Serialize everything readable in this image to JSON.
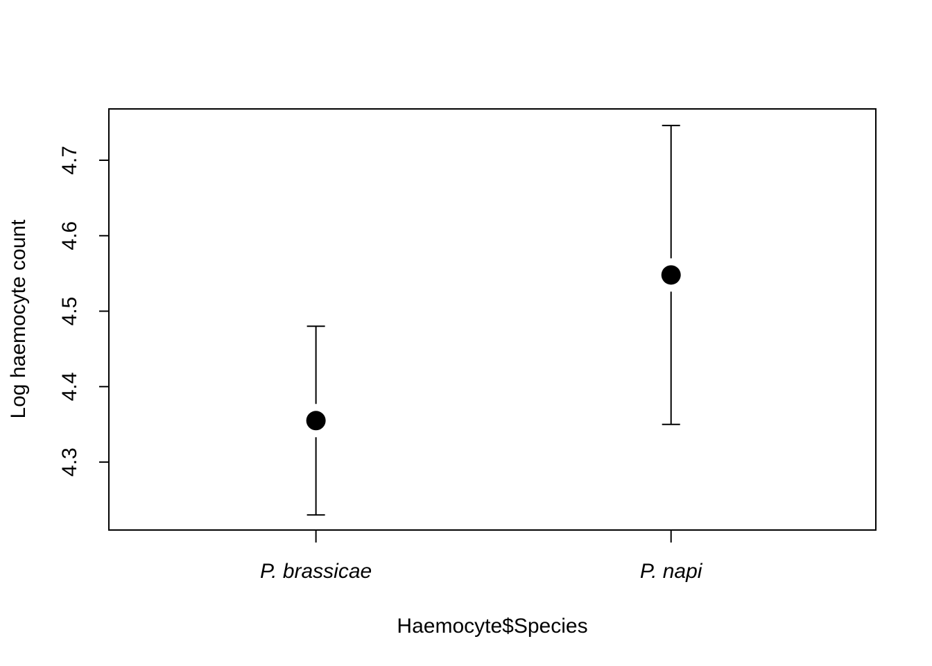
{
  "chart_data": {
    "type": "scatter",
    "title": "",
    "xlabel": "Haemocyte$Species",
    "ylabel": "Log haemocyte count",
    "categories": [
      "P. brassicae",
      "P. napi"
    ],
    "series": [
      {
        "points": [
          {
            "category": "P. brassicae",
            "mean": 4.355,
            "lower": 4.23,
            "upper": 4.48
          },
          {
            "category": "P. napi",
            "mean": 4.548,
            "lower": 4.35,
            "upper": 4.746
          }
        ]
      }
    ],
    "yticks": [
      "4.3",
      "4.4",
      "4.5",
      "4.6",
      "4.7"
    ],
    "ylim": [
      4.21,
      4.768
    ],
    "grid": false,
    "legend": "none",
    "colors": {
      "marker": "#000000",
      "axis": "#000000",
      "background": "#ffffff"
    }
  }
}
